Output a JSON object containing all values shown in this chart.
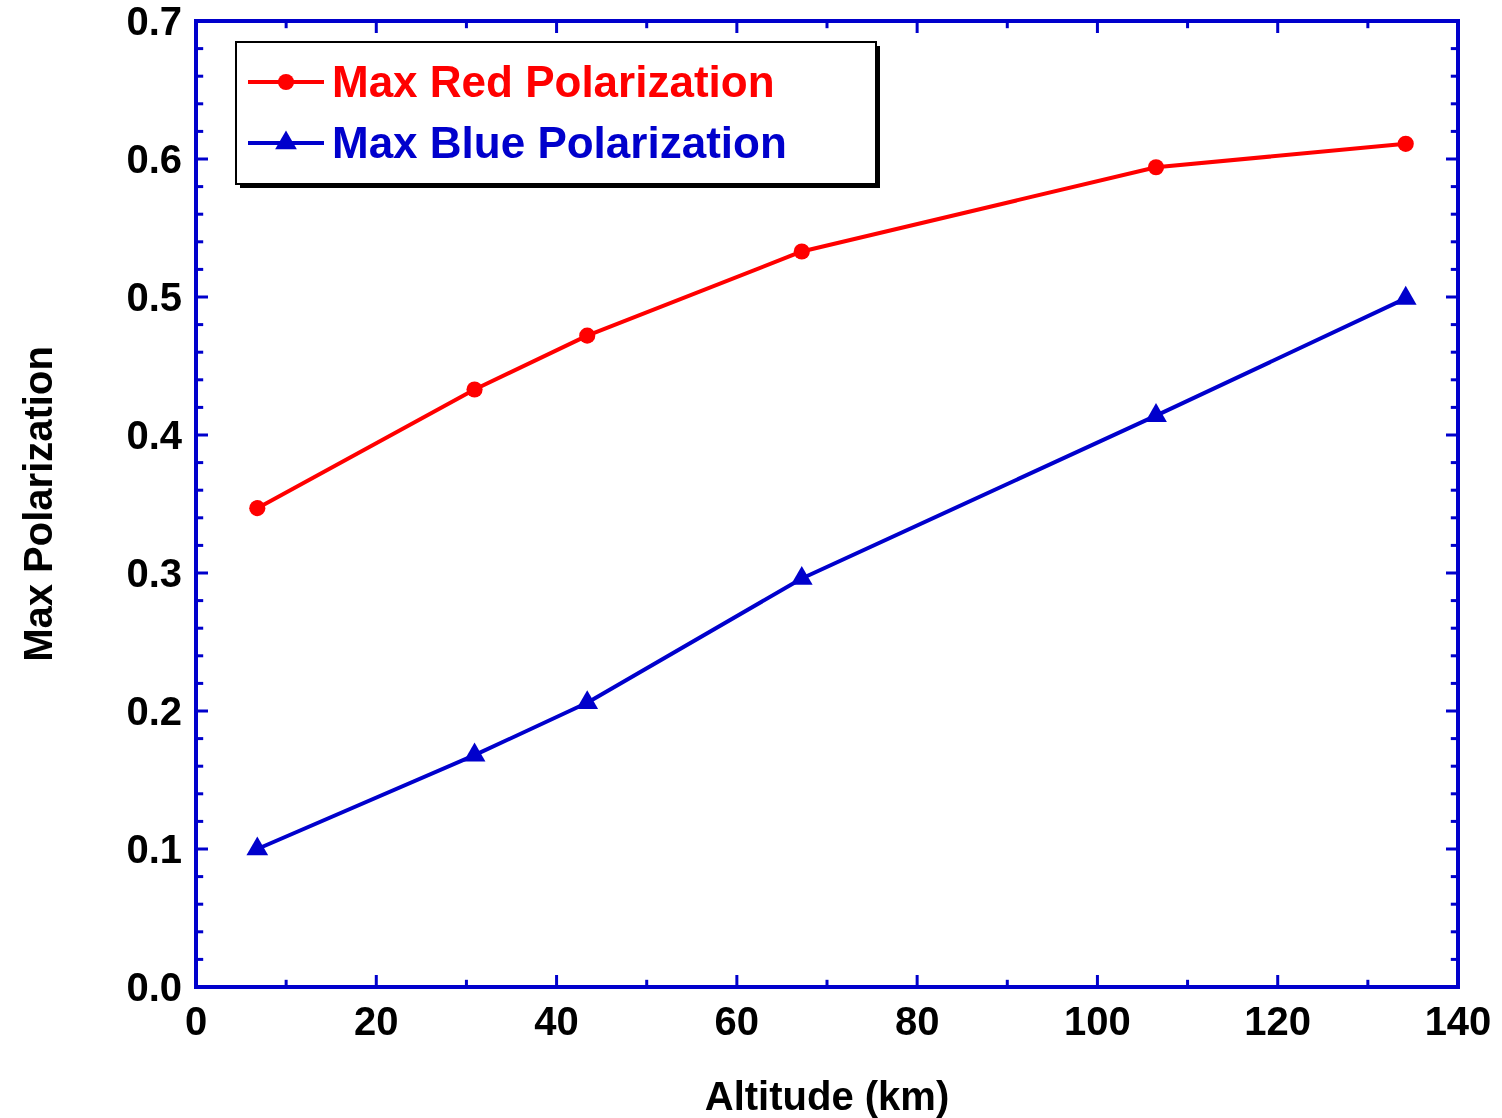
{
  "chart_data": {
    "type": "line",
    "xlabel": "Altitude (km)",
    "ylabel": "Max Polarization",
    "xlim": [
      0,
      140
    ],
    "ylim": [
      0,
      0.7
    ],
    "xticks": [
      0,
      {
        "value": 10,
        "label": null
      },
      20,
      {
        "value": 30,
        "label": null
      },
      40,
      {
        "value": 50,
        "label": null
      },
      60,
      {
        "value": 70,
        "label": null
      },
      80,
      {
        "value": 90,
        "label": null
      },
      100,
      {
        "value": 110,
        "label": null
      },
      120,
      {
        "value": 130,
        "label": null
      },
      140
    ],
    "yticks": [
      {
        "value": 0,
        "label": "0.0"
      },
      {
        "value": 0.02,
        "label": null
      },
      {
        "value": 0.04,
        "label": null
      },
      {
        "value": 0.06,
        "label": null
      },
      {
        "value": 0.08,
        "label": null
      },
      0.1,
      {
        "value": 0.12,
        "label": null
      },
      {
        "value": 0.14,
        "label": null
      },
      {
        "value": 0.16,
        "label": null
      },
      {
        "value": 0.18,
        "label": null
      },
      0.2,
      {
        "value": 0.22,
        "label": null
      },
      {
        "value": 0.24,
        "label": null
      },
      {
        "value": 0.26,
        "label": null
      },
      {
        "value": 0.28,
        "label": null
      },
      0.3,
      {
        "value": 0.32,
        "label": null
      },
      {
        "value": 0.34,
        "label": null
      },
      {
        "value": 0.36,
        "label": null
      },
      {
        "value": 0.38,
        "label": null
      },
      0.4,
      {
        "value": 0.42,
        "label": null
      },
      {
        "value": 0.44,
        "label": null
      },
      {
        "value": 0.46,
        "label": null
      },
      {
        "value": 0.48,
        "label": null
      },
      0.5,
      {
        "value": 0.52,
        "label": null
      },
      {
        "value": 0.54,
        "label": null
      },
      {
        "value": 0.56,
        "label": null
      },
      {
        "value": 0.58,
        "label": null
      },
      0.6,
      {
        "value": 0.62,
        "label": null
      },
      {
        "value": 0.64,
        "label": null
      },
      {
        "value": 0.66,
        "label": null
      },
      {
        "value": 0.68,
        "label": null
      },
      0.7
    ],
    "x": [
      6.8,
      30.9,
      43.4,
      67.2,
      106.5,
      134.2
    ],
    "legend": "top left",
    "grid": false,
    "line_style": "solid",
    "series": [
      {
        "name": "Max Red Polarization",
        "color": "#ff0000",
        "marker": "circle",
        "values": [
          0.347,
          0.433,
          0.472,
          0.533,
          0.594,
          0.611
        ]
      },
      {
        "name": "Max Blue Polarization",
        "color": "#0000cc",
        "marker": "triangle",
        "values": [
          0.1,
          0.168,
          0.206,
          0.296,
          0.414,
          0.499
        ]
      }
    ]
  }
}
